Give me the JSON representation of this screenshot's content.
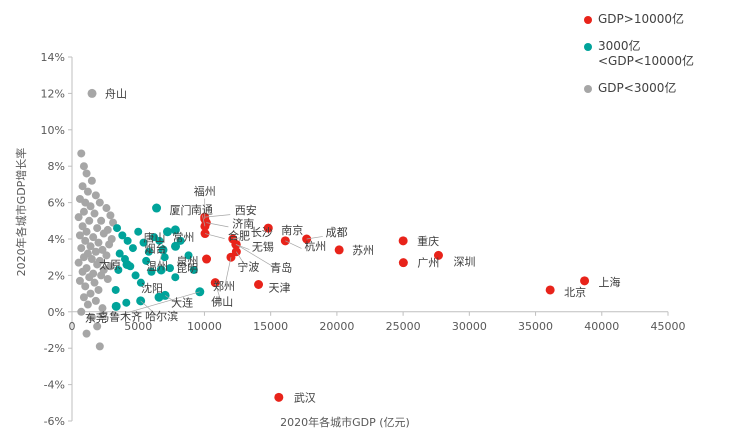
{
  "chart_data": {
    "type": "scatter",
    "title": "",
    "xlabel": "2020年各城市GDP (亿元)",
    "ylabel": "2020年各城市GDP增长率",
    "xlim": [
      0,
      45000
    ],
    "ylim": [
      -6,
      14
    ],
    "x_ticks": [
      0,
      5000,
      10000,
      15000,
      20000,
      25000,
      30000,
      35000,
      40000,
      45000
    ],
    "y_ticks": [
      14,
      12,
      10,
      8,
      6,
      4,
      2,
      0,
      -2,
      -4,
      -6
    ],
    "y_tick_suffix": "%",
    "grid": false,
    "legend_position": "top-right",
    "legend": [
      {
        "label": "GDP>10000亿",
        "color": "#e8231a"
      },
      {
        "label": "3000亿<GDP<10000亿",
        "color": "#00a39a"
      },
      {
        "label": "GDP<3000亿",
        "color": "#a6a6a6"
      }
    ],
    "series": [
      {
        "name": "GDP>10000亿",
        "color": "#e8231a",
        "labeled_points": [
          {
            "city": "福州",
            "x": 10020,
            "y": 5.1,
            "dx": 0,
            "dy": -24,
            "anchor": "middle",
            "leader": true
          },
          {
            "city": "西安",
            "x": 10020,
            "y": 5.2,
            "dx": 30,
            "dy": -3,
            "anchor": "start",
            "leader": true
          },
          {
            "city": "南通",
            "x": 10036,
            "y": 4.7,
            "dx": -3,
            "dy": -13,
            "anchor": "middle",
            "leader": true
          },
          {
            "city": "济南",
            "x": 10141,
            "y": 4.9,
            "dx": 26,
            "dy": 5,
            "anchor": "start",
            "leader": true
          },
          {
            "city": "合肥",
            "x": 10046,
            "y": 4.3,
            "dx": 23,
            "dy": 6,
            "anchor": "start",
            "leader": true
          },
          {
            "city": "泉州",
            "x": 10159,
            "y": 2.9,
            "dx": -8,
            "dy": 6,
            "anchor": "end",
            "leader": false
          },
          {
            "city": "佛山",
            "x": 10816,
            "y": 1.6,
            "dx": 7,
            "dy": 23,
            "anchor": "middle",
            "leader": true
          },
          {
            "city": "郑州",
            "x": 12003,
            "y": 3.0,
            "dx": -7,
            "dy": 33,
            "anchor": "middle",
            "leader": true
          },
          {
            "city": "长沙",
            "x": 12143,
            "y": 4.0,
            "dx": 18,
            "dy": -3,
            "anchor": "start",
            "leader": true
          },
          {
            "city": "无锡",
            "x": 12370,
            "y": 3.7,
            "dx": 16,
            "dy": 6,
            "anchor": "start",
            "leader": true
          },
          {
            "city": "青岛",
            "x": 12401,
            "y": 3.7,
            "dx": 45,
            "dy": 27,
            "anchor": "middle",
            "leader": true
          },
          {
            "city": "宁波",
            "x": 12409,
            "y": 3.3,
            "dx": 12,
            "dy": 19,
            "anchor": "middle",
            "leader": true
          },
          {
            "city": "天津",
            "x": 14084,
            "y": 1.5,
            "dx": 10,
            "dy": 7,
            "anchor": "start",
            "leader": false
          },
          {
            "city": "南京",
            "x": 14818,
            "y": 4.6,
            "dx": 13,
            "dy": 6,
            "anchor": "start",
            "leader": false
          },
          {
            "city": "武汉",
            "x": 15616,
            "y": -4.7,
            "dx": 15,
            "dy": 4,
            "anchor": "start",
            "leader": false
          },
          {
            "city": "杭州",
            "x": 16106,
            "y": 3.9,
            "dx": 19,
            "dy": 9,
            "anchor": "start",
            "leader": true
          },
          {
            "city": "成都",
            "x": 17717,
            "y": 4.0,
            "dx": 19,
            "dy": -3,
            "anchor": "start",
            "leader": true
          },
          {
            "city": "苏州",
            "x": 20171,
            "y": 3.4,
            "dx": 13,
            "dy": 4,
            "anchor": "start",
            "leader": false
          },
          {
            "city": "重庆",
            "x": 25003,
            "y": 3.9,
            "dx": 14,
            "dy": 4,
            "anchor": "start",
            "leader": false
          },
          {
            "city": "广州",
            "x": 25019,
            "y": 2.7,
            "dx": 14,
            "dy": 4,
            "anchor": "start",
            "leader": false
          },
          {
            "city": "深圳",
            "x": 27670,
            "y": 3.1,
            "dx": 15,
            "dy": 10,
            "anchor": "start",
            "leader": false
          },
          {
            "city": "北京",
            "x": 36103,
            "y": 1.2,
            "dx": 14,
            "dy": 6,
            "anchor": "start",
            "leader": false
          },
          {
            "city": "上海",
            "x": 38700,
            "y": 1.7,
            "dx": 14,
            "dy": 5,
            "anchor": "start",
            "leader": false
          }
        ],
        "points": []
      },
      {
        "name": "3000亿<GDP<10000亿",
        "color": "#00a39a",
        "labeled_points": [
          {
            "city": "东莞",
            "x": 9650,
            "y": 1.1,
            "dx": -104,
            "dy": 30,
            "anchor": "middle",
            "leader": true
          },
          {
            "city": "烟台",
            "x": 7816,
            "y": 3.6,
            "dx": -9,
            "dy": 6,
            "anchor": "end",
            "leader": false
          },
          {
            "city": "常州",
            "x": 7805,
            "y": 4.5,
            "dx": -3,
            "dy": 11,
            "anchor": "start",
            "leader": false
          },
          {
            "city": "唐山",
            "x": 7211,
            "y": 4.4,
            "dx": -2,
            "dy": 10,
            "anchor": "end",
            "leader": false
          },
          {
            "city": "大连",
            "x": 7030,
            "y": 0.9,
            "dx": 17,
            "dy": 11,
            "anchor": "middle",
            "leader": true
          },
          {
            "city": "温州",
            "x": 6871,
            "y": 3.4,
            "dx": -6,
            "dy": 20,
            "anchor": "middle",
            "leader": true
          },
          {
            "city": "昆明",
            "x": 6734,
            "y": 2.3,
            "dx": 15,
            "dy": 2,
            "anchor": "start",
            "leader": false
          },
          {
            "city": "沈阳",
            "x": 6572,
            "y": 0.8,
            "dx": 4,
            "dy": -5,
            "anchor": "end",
            "leader": false
          },
          {
            "city": "厦门",
            "x": 6384,
            "y": 5.7,
            "dx": 13,
            "dy": 6,
            "anchor": "start",
            "leader": false
          },
          {
            "city": "哈尔滨",
            "x": 5184,
            "y": 0.6,
            "dx": 21,
            "dy": 19,
            "anchor": "middle",
            "leader": true
          },
          {
            "city": "太原",
            "x": 4153,
            "y": 2.6,
            "dx": -6,
            "dy": 4,
            "anchor": "end",
            "leader": false
          },
          {
            "city": "乌鲁木齐",
            "x": 3337,
            "y": 0.3,
            "dx": 4,
            "dy": 14,
            "anchor": "middle",
            "leader": false
          }
        ],
        "points": [
          [
            3400,
            4.6
          ],
          [
            3800,
            4.2
          ],
          [
            4200,
            3.9
          ],
          [
            4600,
            3.5
          ],
          [
            3600,
            3.2
          ],
          [
            5000,
            4.4
          ],
          [
            5400,
            3.8
          ],
          [
            4000,
            2.9
          ],
          [
            5800,
            3.3
          ],
          [
            4400,
            2.5
          ],
          [
            6200,
            4.1
          ],
          [
            4800,
            2.0
          ],
          [
            5200,
            1.6
          ],
          [
            3300,
            1.2
          ],
          [
            5600,
            2.8
          ],
          [
            6000,
            2.2
          ],
          [
            6600,
            3.9
          ],
          [
            7000,
            3.0
          ],
          [
            7400,
            2.4
          ],
          [
            4100,
            0.5
          ],
          [
            3500,
            2.3
          ],
          [
            8200,
            3.9
          ],
          [
            8800,
            3.1
          ],
          [
            9200,
            2.3
          ],
          [
            7800,
            1.9
          ]
        ]
      },
      {
        "name": "GDP<3000亿",
        "color": "#a6a6a6",
        "labeled_points": [
          {
            "city": "舟山",
            "x": 1512,
            "y": 12.0,
            "dx": 13,
            "dy": 4,
            "anchor": "start",
            "leader": false
          }
        ],
        "points": [
          [
            700,
            8.7
          ],
          [
            900,
            8.0
          ],
          [
            1100,
            7.6
          ],
          [
            1500,
            7.2
          ],
          [
            800,
            6.9
          ],
          [
            1200,
            6.6
          ],
          [
            1800,
            6.4
          ],
          [
            600,
            6.2
          ],
          [
            1000,
            6.0
          ],
          [
            2100,
            6.0
          ],
          [
            1400,
            5.8
          ],
          [
            2600,
            5.7
          ],
          [
            900,
            5.5
          ],
          [
            1700,
            5.4
          ],
          [
            2900,
            5.3
          ],
          [
            500,
            5.2
          ],
          [
            1300,
            5.0
          ],
          [
            2200,
            5.0
          ],
          [
            3100,
            4.9
          ],
          [
            800,
            4.7
          ],
          [
            1900,
            4.6
          ],
          [
            2700,
            4.5
          ],
          [
            1100,
            4.4
          ],
          [
            2400,
            4.3
          ],
          [
            600,
            4.2
          ],
          [
            1600,
            4.1
          ],
          [
            3000,
            4.0
          ],
          [
            1000,
            3.9
          ],
          [
            2000,
            3.8
          ],
          [
            2800,
            3.7
          ],
          [
            1400,
            3.6
          ],
          [
            700,
            3.5
          ],
          [
            2300,
            3.4
          ],
          [
            1800,
            3.3
          ],
          [
            1200,
            3.2
          ],
          [
            2600,
            3.1
          ],
          [
            900,
            3.0
          ],
          [
            1500,
            2.9
          ],
          [
            2100,
            2.8
          ],
          [
            500,
            2.7
          ],
          [
            1900,
            2.6
          ],
          [
            2900,
            2.5
          ],
          [
            1100,
            2.4
          ],
          [
            2400,
            2.3
          ],
          [
            800,
            2.2
          ],
          [
            1600,
            2.1
          ],
          [
            2200,
            2.0
          ],
          [
            1300,
            1.9
          ],
          [
            2700,
            1.8
          ],
          [
            600,
            1.7
          ],
          [
            1700,
            1.6
          ],
          [
            1000,
            1.4
          ],
          [
            2000,
            1.2
          ],
          [
            1400,
            1.0
          ],
          [
            900,
            0.8
          ],
          [
            1800,
            0.6
          ],
          [
            1200,
            0.4
          ],
          [
            2300,
            0.2
          ],
          [
            700,
            0.0
          ],
          [
            1500,
            -0.3
          ],
          [
            1900,
            -0.8
          ],
          [
            1100,
            -1.2
          ],
          [
            2100,
            -1.9
          ]
        ]
      }
    ]
  }
}
